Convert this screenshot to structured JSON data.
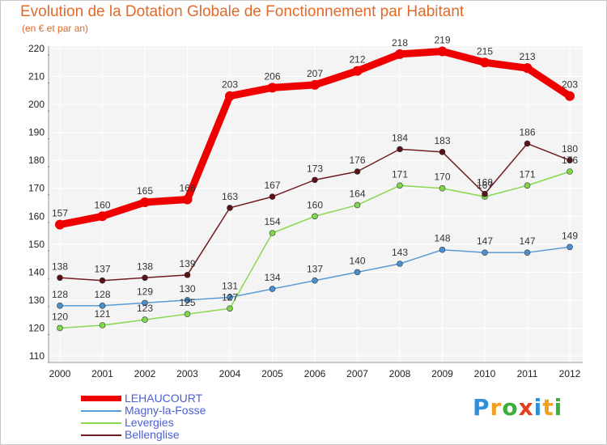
{
  "chart_data": {
    "type": "line",
    "title": "Evolution de la Dotation Globale de Fonctionnement par Habitant",
    "subtitle": "(en € et par an)",
    "xlabel": "",
    "ylabel": "",
    "x": [
      "2000",
      "2001",
      "2002",
      "2003",
      "2004",
      "2005",
      "2006",
      "2007",
      "2008",
      "2009",
      "2010",
      "2011",
      "2012"
    ],
    "ylim": [
      110,
      220
    ],
    "yticks": [
      110,
      120,
      130,
      140,
      150,
      160,
      170,
      180,
      190,
      200,
      210,
      220
    ],
    "grid": true,
    "legend_position": "bottom-left",
    "series": [
      {
        "name": "LEHAUCOURT",
        "color": "#ee0000",
        "values": [
          157,
          160,
          165,
          166,
          203,
          206,
          207,
          212,
          218,
          219,
          215,
          213,
          203
        ],
        "labels": [
          "157",
          "160",
          "165",
          "166",
          "203",
          "206",
          "207",
          "212",
          "218",
          "219",
          "215",
          "213",
          "203"
        ]
      },
      {
        "name": "Magny-la-Fosse",
        "color": "#5b9bd5",
        "values": [
          128,
          128,
          129,
          130,
          131,
          134,
          137,
          140,
          143,
          148,
          147,
          147,
          149
        ],
        "labels": [
          "128",
          "128",
          "129",
          "130",
          "131",
          "134",
          "137",
          "140",
          "143",
          "148",
          "147",
          "147",
          "149"
        ]
      },
      {
        "name": "Levergies",
        "color": "#88d850",
        "values": [
          120,
          121,
          123,
          125,
          127,
          154,
          160,
          164,
          171,
          170,
          167,
          171,
          176
        ],
        "labels": [
          "120",
          "121",
          "123",
          "125",
          "127",
          "154",
          "160",
          "164",
          "171",
          "170",
          "167",
          "171",
          "176"
        ]
      },
      {
        "name": "Bellenglise",
        "color": "#701c20",
        "values": [
          138,
          137,
          138,
          139,
          163,
          167,
          173,
          176,
          184,
          183,
          168,
          186,
          180
        ],
        "labels": [
          "138",
          "137",
          "138",
          "139",
          "163",
          "167",
          "173",
          "176",
          "184",
          "183",
          "168",
          "186",
          "180"
        ]
      }
    ]
  },
  "brand": {
    "letters": [
      "P",
      "r",
      "o",
      "x",
      "i",
      "t",
      "i"
    ],
    "colors": [
      "#2f8fd8",
      "#f0a020",
      "#3cae3c",
      "#e0401e",
      "#2f8fd8",
      "#f0a020",
      "#3cae3c"
    ]
  }
}
